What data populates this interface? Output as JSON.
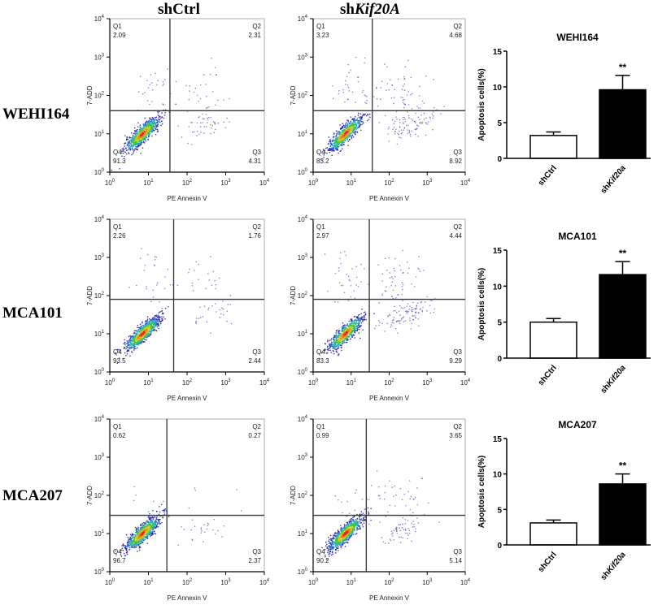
{
  "columns": [
    {
      "prefix": "sh",
      "italic": "Ctrl"
    },
    {
      "prefix": "sh",
      "italic": "Kif20A"
    }
  ],
  "rows": [
    "WEHI164",
    "MCA101",
    "MCA207"
  ],
  "chart_data": [
    {
      "type": "scatter",
      "row": "WEHI164",
      "group": "shCtrl",
      "xlabel": "PE Annexin V",
      "ylabel": "7-ADD",
      "scale": "log",
      "xlim": [
        1,
        10000
      ],
      "ylim": [
        1,
        10000
      ],
      "x_ticks": [
        "10^0",
        "10^1",
        "10^2",
        "10^3",
        "10^4"
      ],
      "gate": {
        "x": 36,
        "y": 40
      },
      "quadrants": {
        "Q1": "2.09",
        "Q2": "2.31",
        "Q3": "4.31",
        "Q4": "91.3"
      }
    },
    {
      "type": "scatter",
      "row": "WEHI164",
      "group": "shKif20A",
      "xlabel": "PE Annexin V",
      "ylabel": "7-ADD",
      "scale": "log",
      "xlim": [
        1,
        10000
      ],
      "ylim": [
        1,
        10000
      ],
      "x_ticks": [
        "10^0",
        "10^1",
        "10^2",
        "10^3",
        "10^4"
      ],
      "gate": {
        "x": 36,
        "y": 40
      },
      "quadrants": {
        "Q1": "3.23",
        "Q2": "4.68",
        "Q3": "8.92",
        "Q4": "83.2"
      }
    },
    {
      "type": "scatter",
      "row": "MCA101",
      "group": "shCtrl",
      "xlabel": "PE Annexin V",
      "ylabel": "7-ADD",
      "scale": "log",
      "xlim": [
        1,
        10000
      ],
      "ylim": [
        1,
        10000
      ],
      "x_ticks": [
        "10^0",
        "10^1",
        "10^2",
        "10^3",
        "10^4"
      ],
      "gate": {
        "x": 45,
        "y": 80
      },
      "quadrants": {
        "Q1": "2.26",
        "Q2": "1.76",
        "Q3": "2.44",
        "Q4": "93.5"
      }
    },
    {
      "type": "scatter",
      "row": "MCA101",
      "group": "shKif20A",
      "xlabel": "PE Annexin V",
      "ylabel": "7-ADD",
      "scale": "log",
      "xlim": [
        1,
        10000
      ],
      "ylim": [
        1,
        10000
      ],
      "x_ticks": [
        "10^0",
        "10^1",
        "10^2",
        "10^3",
        "10^4"
      ],
      "gate": {
        "x": 30,
        "y": 80
      },
      "quadrants": {
        "Q1": "2.97",
        "Q2": "4.44",
        "Q3": "9.29",
        "Q4": "83.3"
      }
    },
    {
      "type": "scatter",
      "row": "MCA207",
      "group": "shCtrl",
      "xlabel": "PE Annexin V",
      "ylabel": "7-ADD",
      "scale": "log",
      "xlim": [
        1,
        10000
      ],
      "ylim": [
        1,
        10000
      ],
      "x_ticks": [
        "10^0",
        "10^1",
        "10^2",
        "10^3",
        "10^4"
      ],
      "gate": {
        "x": 30,
        "y": 30
      },
      "quadrants": {
        "Q1": "0.62",
        "Q2": "0.27",
        "Q3": "2.37",
        "Q4": "96.7"
      }
    },
    {
      "type": "scatter",
      "row": "MCA207",
      "group": "shKif20A",
      "xlabel": "PE Annexin V",
      "ylabel": "7-ADD",
      "scale": "log",
      "xlim": [
        1,
        10000
      ],
      "ylim": [
        1,
        10000
      ],
      "x_ticks": [
        "10^0",
        "10^1",
        "10^2",
        "10^3",
        "10^4"
      ],
      "gate": {
        "x": 25,
        "y": 30
      },
      "quadrants": {
        "Q1": "0.99",
        "Q2": "3.65",
        "Q3": "5.14",
        "Q4": "90.2"
      }
    },
    {
      "type": "bar",
      "title": "WEHI164",
      "ylabel": "Apoptosis cells(%)",
      "ylim": [
        0,
        15
      ],
      "y_ticks": [
        "0",
        "5",
        "10",
        "15"
      ],
      "categories": [
        "shCtrl",
        "shKif20a"
      ],
      "values": [
        3.2,
        9.6
      ],
      "errors": [
        0.5,
        2.0
      ],
      "annotation": "**",
      "colors": [
        "#ffffff",
        "#000000"
      ]
    },
    {
      "type": "bar",
      "title": "MCA101",
      "ylabel": "Apoptosis cells(%)",
      "ylim": [
        0,
        15
      ],
      "y_ticks": [
        "0",
        "5",
        "10",
        "15"
      ],
      "categories": [
        "shCtrl",
        "shKif20a"
      ],
      "values": [
        5.0,
        11.6
      ],
      "errors": [
        0.5,
        1.8
      ],
      "annotation": "**",
      "colors": [
        "#ffffff",
        "#000000"
      ]
    },
    {
      "type": "bar",
      "title": "MCA207",
      "ylabel": "Apoptosis cells(%)",
      "ylim": [
        0,
        15
      ],
      "y_ticks": [
        "0",
        "5",
        "10",
        "15"
      ],
      "categories": [
        "shCtrl",
        "shKif20a"
      ],
      "values": [
        3.1,
        8.6
      ],
      "errors": [
        0.4,
        1.4
      ],
      "annotation": "**",
      "colors": [
        "#ffffff",
        "#000000"
      ]
    }
  ]
}
